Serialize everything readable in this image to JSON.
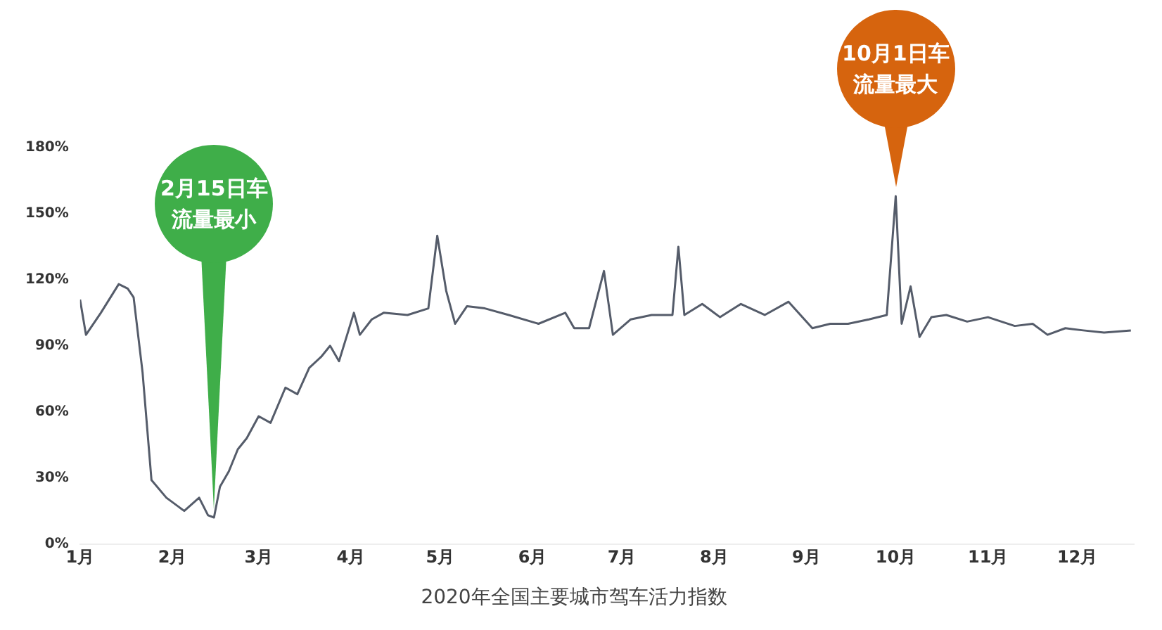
{
  "chart_data": {
    "type": "line",
    "title": "2020年全国主要城市驾车活力指数",
    "x": [
      "2020-01-01",
      "2020-01-03",
      "2020-01-08",
      "2020-01-14",
      "2020-01-17",
      "2020-01-19",
      "2020-01-22",
      "2020-01-25",
      "2020-01-30",
      "2020-02-05",
      "2020-02-10",
      "2020-02-13",
      "2020-02-15",
      "2020-02-17",
      "2020-02-20",
      "2020-02-23",
      "2020-02-26",
      "2020-03-01",
      "2020-03-05",
      "2020-03-10",
      "2020-03-14",
      "2020-03-18",
      "2020-03-22",
      "2020-03-25",
      "2020-03-28",
      "2020-04-02",
      "2020-04-04",
      "2020-04-08",
      "2020-04-12",
      "2020-04-20",
      "2020-04-27",
      "2020-04-30",
      "2020-05-03",
      "2020-05-06",
      "2020-05-10",
      "2020-05-16",
      "2020-05-24",
      "2020-06-03",
      "2020-06-12",
      "2020-06-15",
      "2020-06-20",
      "2020-06-25",
      "2020-06-28",
      "2020-07-04",
      "2020-07-11",
      "2020-07-18",
      "2020-07-20",
      "2020-07-22",
      "2020-07-28",
      "2020-08-03",
      "2020-08-10",
      "2020-08-18",
      "2020-08-26",
      "2020-09-03",
      "2020-09-09",
      "2020-09-15",
      "2020-09-22",
      "2020-09-28",
      "2020-10-01",
      "2020-10-03",
      "2020-10-06",
      "2020-10-09",
      "2020-10-13",
      "2020-10-18",
      "2020-10-25",
      "2020-11-01",
      "2020-11-10",
      "2020-11-16",
      "2020-11-21",
      "2020-11-27",
      "2020-12-03",
      "2020-12-10",
      "2020-12-19"
    ],
    "series": [
      {
        "color": "#555c6a",
        "values": [
          111,
          95,
          105,
          118,
          116,
          112,
          78,
          29,
          21,
          15,
          21,
          13,
          12,
          26,
          33,
          43,
          48,
          58,
          55,
          71,
          68,
          80,
          85,
          90,
          83,
          105,
          95,
          102,
          105,
          104,
          107,
          140,
          115,
          100,
          108,
          107,
          104,
          100,
          105,
          98,
          98,
          124,
          95,
          102,
          104,
          104,
          135,
          104,
          109,
          103,
          109,
          104,
          110,
          98,
          100,
          100,
          102,
          104,
          158,
          100,
          117,
          94,
          103,
          104,
          101,
          103,
          99,
          100,
          95,
          98,
          97,
          96,
          97
        ]
      }
    ],
    "xlim": [
      "2020-01-01",
      "2020-12-20"
    ],
    "xticks": [
      {
        "value": "2020-01-01",
        "label": "1月"
      },
      {
        "value": "2020-02-01",
        "label": "2月"
      },
      {
        "value": "2020-03-01",
        "label": "3月"
      },
      {
        "value": "2020-04-01",
        "label": "4月"
      },
      {
        "value": "2020-05-01",
        "label": "5月"
      },
      {
        "value": "2020-06-01",
        "label": "6月"
      },
      {
        "value": "2020-07-01",
        "label": "7月"
      },
      {
        "value": "2020-08-01",
        "label": "8月"
      },
      {
        "value": "2020-09-01",
        "label": "9月"
      },
      {
        "value": "2020-10-01",
        "label": "10月"
      },
      {
        "value": "2020-11-01",
        "label": "11月"
      },
      {
        "value": "2020-12-01",
        "label": "12月"
      }
    ],
    "ylim": [
      0,
      180
    ],
    "yticks": [
      {
        "value": 0,
        "label": "0%"
      },
      {
        "value": 30,
        "label": "30%"
      },
      {
        "value": 60,
        "label": "60%"
      },
      {
        "value": 90,
        "label": "90%"
      },
      {
        "value": 120,
        "label": "120%"
      },
      {
        "value": 150,
        "label": "150%"
      },
      {
        "value": 180,
        "label": "180%"
      }
    ],
    "annotations": [
      {
        "text": "2月15日车流量最小",
        "x": "2020-02-15",
        "y": 12
      },
      {
        "text": "10月1日车流量最大",
        "x": "2020-10-01",
        "y": 158
      }
    ],
    "grid": false,
    "legend": false,
    "marker": "none",
    "line_style": "solid"
  }
}
